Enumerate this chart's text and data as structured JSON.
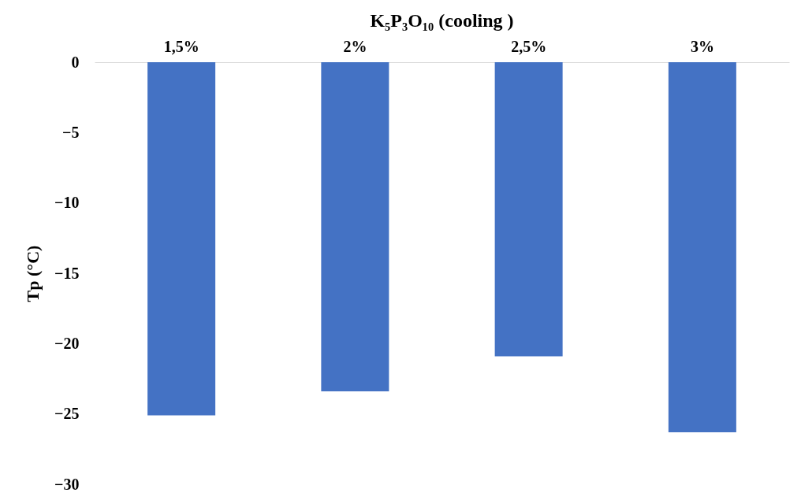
{
  "chart_data": {
    "type": "bar",
    "title": "K₅P₃O₁₀ (cooling )",
    "ylabel": "Tp (°C)",
    "categories": [
      "1,5%",
      "2%",
      "2,5%",
      "3%"
    ],
    "values": [
      -25.1,
      -23.4,
      -20.9,
      -26.3
    ],
    "color": "#4472c4",
    "ylim": [
      -30,
      0
    ],
    "yticks": [
      0,
      -5,
      -10,
      -15,
      -20,
      -25,
      -30
    ],
    "grid": false
  }
}
